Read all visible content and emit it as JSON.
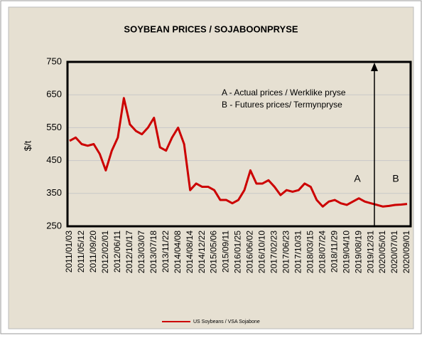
{
  "chart_data": {
    "type": "line",
    "title": "SOYBEAN PRICES / SOJABOONPRYSE",
    "y_label": "$/t",
    "annotations": [
      "A - Actual prices / Werklike pryse",
      "B - Futures prices/ Termynpryse",
      "A",
      "B"
    ],
    "categories": [
      "2011/01/03",
      null,
      "2011/05/12",
      null,
      "2011/09/20",
      null,
      "2012/02/01",
      null,
      "2012/06/11",
      null,
      "2012/10/17",
      null,
      "2013/03/07",
      null,
      "2013/07/18",
      null,
      "2013/11/22",
      null,
      "2014/04/08",
      null,
      "2014/08/14",
      null,
      "2014/12/22",
      null,
      "2015/05/06",
      null,
      "2015/09/11",
      null,
      "2016/01/25",
      null,
      "2016/06/02",
      null,
      "2016/10/10",
      null,
      "2017/02/23",
      null,
      "2017/06/23",
      null,
      "2017/10/31",
      null,
      "2018/03/15",
      null,
      "2018/07/24",
      null,
      "2018/11/29",
      null,
      "2019/04/10",
      null,
      "2019/08/19",
      null,
      "2019/12/31",
      null,
      "2020/05/01",
      null,
      "2020/07/01",
      null,
      "2020/09/01"
    ],
    "series": [
      {
        "name": "US Soybeans / VSA Sojabone",
        "color": "#cc0000",
        "values": [
          510,
          520,
          500,
          495,
          500,
          470,
          420,
          480,
          520,
          640,
          560,
          540,
          530,
          550,
          580,
          490,
          480,
          520,
          550,
          500,
          360,
          380,
          370,
          370,
          360,
          330,
          330,
          320,
          330,
          360,
          420,
          380,
          380,
          390,
          370,
          345,
          360,
          355,
          360,
          380,
          370,
          330,
          310,
          325,
          330,
          320,
          315,
          325,
          335,
          325,
          320,
          315,
          310,
          312,
          315,
          316,
          318
        ]
      }
    ],
    "ylim": [
      250,
      750
    ],
    "yticks": [
      250,
      350,
      450,
      550,
      650,
      750
    ],
    "grid": true,
    "legend": "bottom"
  }
}
